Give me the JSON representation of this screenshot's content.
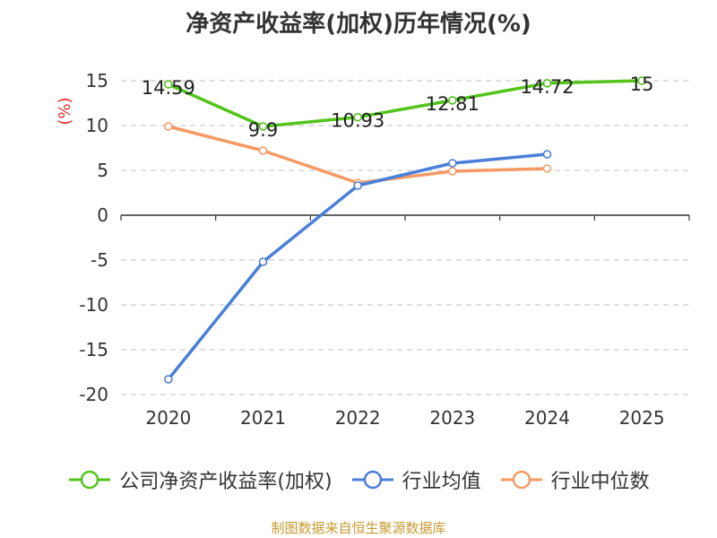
{
  "chart_data": {
    "type": "line",
    "title": "净资产收益率(加权)历年情况(%)",
    "ylabel": "(%)",
    "xlabel": "",
    "categories": [
      "2020",
      "2021",
      "2022",
      "2023",
      "2024",
      "2025"
    ],
    "ylim": [
      -20,
      15
    ],
    "yticks": [
      15,
      10,
      5,
      0,
      -5,
      -10,
      -15,
      -20
    ],
    "grid": true,
    "legend_position": "bottom",
    "series": [
      {
        "name": "公司净资产收益率(加权)",
        "color": "#52c41a",
        "values": [
          14.59,
          9.9,
          10.93,
          12.81,
          14.72,
          15
        ],
        "labels": [
          "14.59",
          "9.9",
          "10.93",
          "12.81",
          "14.72",
          "15"
        ]
      },
      {
        "name": "行业均值",
        "color": "#4a7fd9",
        "values": [
          -18.3,
          -5.2,
          3.3,
          5.8,
          6.8,
          null
        ]
      },
      {
        "name": "行业中位数",
        "color": "#f59a63",
        "values": [
          9.9,
          7.2,
          3.6,
          4.9,
          5.2,
          null
        ]
      }
    ]
  },
  "footer": {
    "source": "制图数据来自恒生聚源数据库"
  }
}
